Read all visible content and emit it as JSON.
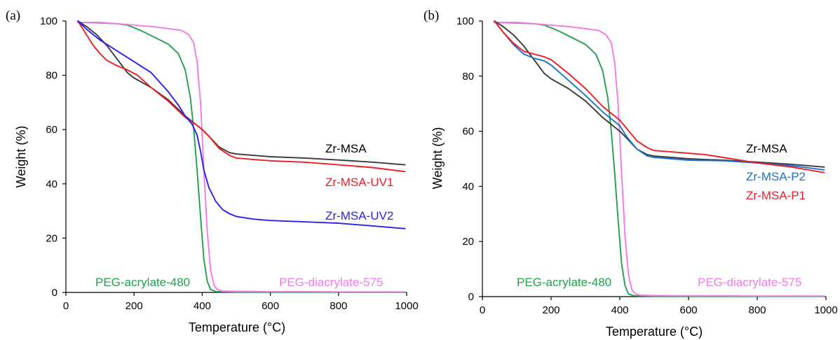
{
  "chart_data": [
    {
      "panel_label": "(a)",
      "type": "line",
      "xlabel": "Temperature (°C)",
      "ylabel": "Weight (%)",
      "xlim": [
        0,
        1000
      ],
      "ylim": [
        0,
        100
      ],
      "xticks": [
        0,
        200,
        400,
        600,
        800,
        1000
      ],
      "yticks": [
        0,
        20,
        40,
        60,
        80,
        100
      ],
      "grid": false,
      "series": [
        {
          "name": "PEG-acrylate-480",
          "color": "#22a04b",
          "x": [
            35,
            100,
            150,
            180,
            220,
            260,
            300,
            330,
            350,
            365,
            375,
            385,
            395,
            405,
            415,
            425,
            440,
            460,
            500,
            600,
            700,
            800,
            900,
            995
          ],
          "y": [
            99.5,
            99.3,
            99,
            98.5,
            96.5,
            94,
            91.5,
            88,
            82,
            72,
            60,
            45,
            28,
            12,
            4,
            1,
            0.3,
            0.2,
            0.1,
            0.1,
            0.1,
            0.1,
            0.1,
            0.1
          ]
        },
        {
          "name": "PEG-diacrylate-575",
          "color": "#f27ae6",
          "x": [
            35,
            100,
            200,
            250,
            300,
            340,
            360,
            375,
            385,
            395,
            405,
            415,
            425,
            435,
            445,
            460,
            500,
            600,
            700,
            800,
            900,
            995
          ],
          "y": [
            99.5,
            99.5,
            98.5,
            98,
            97.2,
            96.5,
            95,
            92,
            85,
            70,
            45,
            22,
            8,
            2.5,
            1,
            0.5,
            0.4,
            0.3,
            0.3,
            0.2,
            0.2,
            0.2
          ]
        },
        {
          "name": "Zr-MSA",
          "color": "#3a3a3a",
          "x": [
            35,
            60,
            90,
            120,
            150,
            180,
            200,
            250,
            300,
            350,
            380,
            400,
            420,
            450,
            480,
            500,
            550,
            600,
            700,
            800,
            900,
            995
          ],
          "y": [
            100,
            98,
            95,
            91,
            86,
            81,
            79,
            75.5,
            71,
            65,
            62,
            60,
            57.5,
            53.5,
            51.5,
            51,
            50.5,
            50,
            49.5,
            48.8,
            48,
            47
          ]
        },
        {
          "name": "Zr-MSA-UV1",
          "color": "#ee1c25",
          "x": [
            35,
            60,
            80,
            100,
            120,
            150,
            180,
            210,
            250,
            300,
            350,
            380,
            400,
            420,
            450,
            480,
            500,
            550,
            600,
            700,
            800,
            900,
            995
          ],
          "y": [
            100,
            95,
            91,
            88,
            85.5,
            83.5,
            82,
            80,
            75.5,
            70.5,
            64.5,
            62,
            60,
            57.5,
            53,
            50.5,
            49.5,
            49,
            48.5,
            48,
            47,
            46,
            44.5
          ]
        },
        {
          "name": "Zr-MSA-UV2",
          "color": "#2b1fee",
          "x": [
            35,
            60,
            100,
            150,
            200,
            250,
            300,
            330,
            350,
            370,
            385,
            395,
            405,
            420,
            440,
            460,
            480,
            500,
            550,
            600,
            700,
            800,
            900,
            995
          ],
          "y": [
            100,
            97,
            93,
            89,
            85,
            81,
            74,
            69,
            65,
            62,
            58,
            52,
            45,
            38.5,
            33.5,
            30.5,
            29,
            28,
            27,
            26.5,
            26,
            25.5,
            24.5,
            23.5
          ]
        }
      ],
      "annotations": [
        {
          "text": "Zr-MSA",
          "color": "#000000"
        },
        {
          "text": "Zr-MSA-UV1",
          "color": "#ee1c25"
        },
        {
          "text": "Zr-MSA-UV2",
          "color": "#2b1fee"
        },
        {
          "text": "PEG-acrylate-480",
          "color": "#22a04b"
        },
        {
          "text": "PEG-diacrylate-575",
          "color": "#f27ae6"
        }
      ]
    },
    {
      "panel_label": "(b)",
      "type": "line",
      "xlabel": "Temperature (°C)",
      "ylabel": "Weight (%)",
      "xlim": [
        0,
        1000
      ],
      "ylim": [
        0,
        100
      ],
      "xticks": [
        0,
        200,
        400,
        600,
        800,
        1000
      ],
      "yticks": [
        0,
        20,
        40,
        60,
        80,
        100
      ],
      "grid": false,
      "series": [
        {
          "name": "PEG-acrylate-480",
          "color": "#22a04b",
          "x": [
            35,
            100,
            150,
            180,
            220,
            260,
            300,
            330,
            350,
            365,
            375,
            385,
            395,
            405,
            415,
            425,
            440,
            460,
            500,
            600,
            700,
            800,
            900,
            995
          ],
          "y": [
            99.5,
            99.3,
            99,
            98.5,
            96.5,
            94,
            91.5,
            88,
            82,
            72,
            60,
            45,
            28,
            12,
            4,
            1,
            0.3,
            0.2,
            0.1,
            0.1,
            0.1,
            0.1,
            0.1,
            0.1
          ]
        },
        {
          "name": "PEG-diacrylate-575",
          "color": "#f27ae6",
          "x": [
            35,
            100,
            200,
            250,
            300,
            340,
            360,
            375,
            385,
            395,
            405,
            415,
            425,
            435,
            445,
            460,
            500,
            600,
            700,
            800,
            900,
            995
          ],
          "y": [
            99.5,
            99.5,
            98.5,
            98,
            97.2,
            96.5,
            95,
            92,
            85,
            70,
            45,
            22,
            8,
            2.5,
            1,
            0.5,
            0.4,
            0.3,
            0.3,
            0.2,
            0.2,
            0.2
          ]
        },
        {
          "name": "Zr-MSA",
          "color": "#3a3a3a",
          "x": [
            35,
            60,
            90,
            120,
            150,
            180,
            200,
            250,
            300,
            350,
            380,
            400,
            420,
            450,
            480,
            500,
            550,
            600,
            700,
            800,
            900,
            995
          ],
          "y": [
            100,
            98,
            95,
            91,
            86,
            81,
            79,
            75.5,
            71,
            65,
            62,
            60,
            57.5,
            53.5,
            51.5,
            51,
            50.5,
            50,
            49.5,
            48.8,
            48,
            47
          ]
        },
        {
          "name": "Zr-MSA-P2",
          "color": "#1a73cf",
          "x": [
            35,
            60,
            90,
            120,
            150,
            180,
            200,
            250,
            300,
            350,
            380,
            400,
            420,
            450,
            480,
            500,
            550,
            600,
            700,
            800,
            900,
            995
          ],
          "y": [
            100,
            96,
            91.5,
            88,
            86.5,
            85.5,
            84,
            78.5,
            73,
            67,
            64,
            62,
            58,
            53.5,
            51,
            50.5,
            50,
            49.5,
            49.3,
            48.5,
            47.5,
            46
          ]
        },
        {
          "name": "Zr-MSA-P1",
          "color": "#ee1c25",
          "x": [
            35,
            60,
            90,
            120,
            150,
            180,
            200,
            250,
            300,
            350,
            380,
            400,
            420,
            450,
            480,
            500,
            550,
            600,
            650,
            700,
            800,
            900,
            995
          ],
          "y": [
            100,
            96,
            92,
            89,
            88,
            87,
            86,
            81,
            75.5,
            69,
            66,
            64,
            61,
            56.5,
            54,
            53,
            52.5,
            52,
            51.5,
            50.5,
            48.5,
            47,
            45
          ]
        }
      ],
      "annotations": [
        {
          "text": "Zr-MSA",
          "color": "#000000"
        },
        {
          "text": "Zr-MSA-P2",
          "color": "#1a73cf"
        },
        {
          "text": "Zr-MSA-P1",
          "color": "#ee1c25"
        },
        {
          "text": "PEG-acrylate-480",
          "color": "#22a04b"
        },
        {
          "text": "PEG-diacrylate-575",
          "color": "#f27ae6"
        }
      ]
    }
  ]
}
